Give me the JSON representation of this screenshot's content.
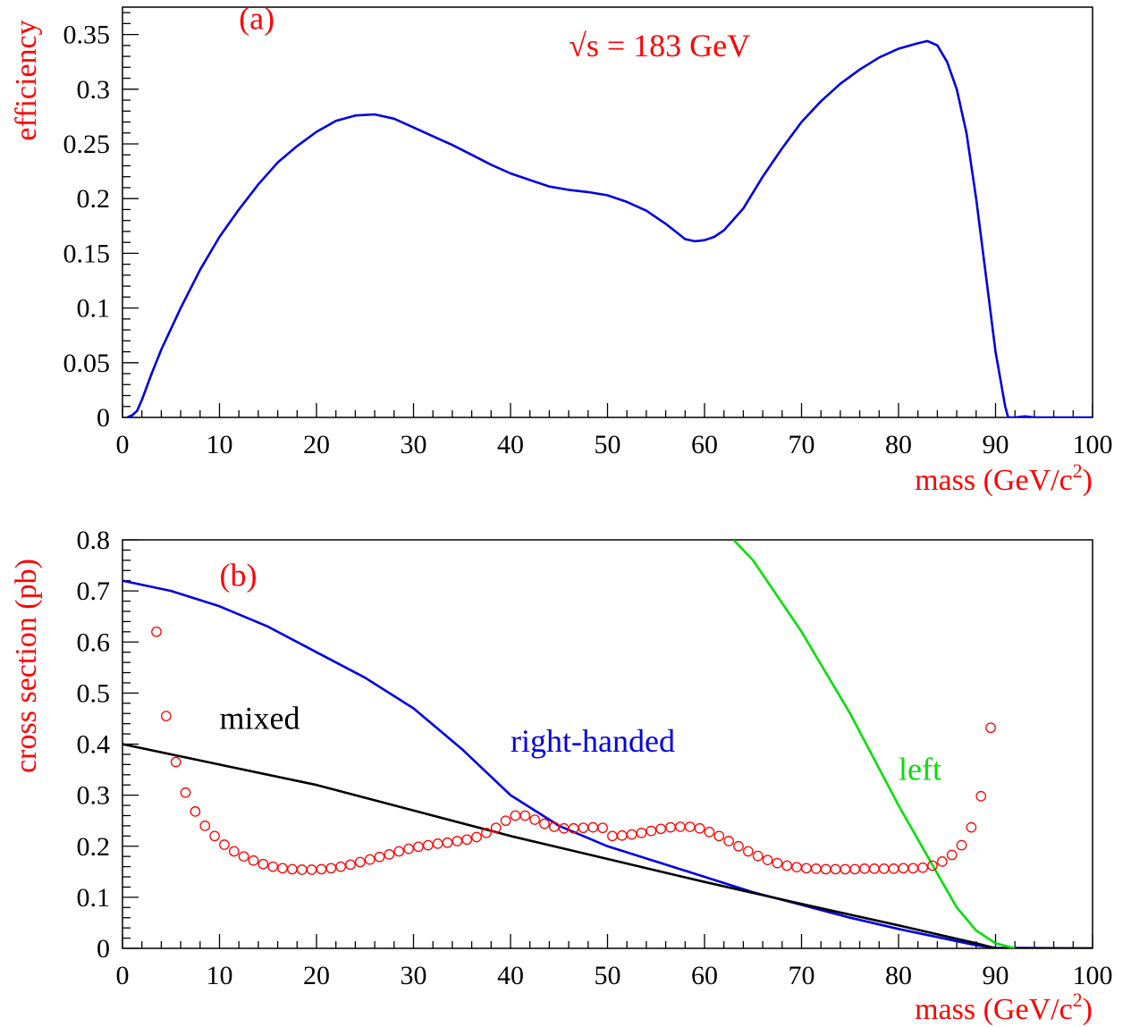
{
  "colors": {
    "red": "#ff0000",
    "blue": "#0000e0",
    "green": "#00e000",
    "black": "#000000"
  },
  "chart_data": [
    {
      "panel": "a",
      "type": "line",
      "xlabel_main": "mass (GeV/c",
      "xlabel_sup": "2",
      "xlabel_close": ")",
      "ylabel": "efficiency",
      "xlim": [
        0,
        100
      ],
      "ylim": [
        0,
        0.375
      ],
      "xticks": [
        "0",
        "10",
        "20",
        "30",
        "40",
        "50",
        "60",
        "70",
        "80",
        "90",
        "100"
      ],
      "yticks": [
        "0",
        "0.05",
        "0.1",
        "0.15",
        "0.2",
        "0.25",
        "0.3",
        "0.35"
      ],
      "grid": false,
      "annotations": [
        {
          "text": "(a)",
          "x": 12,
          "y": 0.355,
          "color": "red"
        },
        {
          "text": "√s = 183 GeV",
          "x": 46,
          "y": 0.33,
          "color": "red"
        }
      ],
      "series": [
        {
          "color": "blue",
          "x": [
            0.5,
            1,
            1.5,
            2,
            3,
            4,
            6,
            8,
            10,
            12,
            14,
            16,
            18,
            20,
            22,
            24,
            26,
            28,
            30,
            32,
            34,
            36,
            38,
            40,
            42,
            44,
            46,
            48,
            50,
            52,
            54,
            56,
            57,
            58,
            59,
            60,
            61,
            62,
            64,
            66,
            68,
            70,
            72,
            74,
            76,
            78,
            80,
            82,
            83,
            84,
            85,
            86,
            87,
            88,
            89,
            90,
            91,
            91.3,
            92,
            93,
            94,
            100
          ],
          "y": [
            0.0,
            0.002,
            0.006,
            0.016,
            0.04,
            0.062,
            0.1,
            0.135,
            0.165,
            0.19,
            0.213,
            0.233,
            0.248,
            0.261,
            0.271,
            0.276,
            0.277,
            0.273,
            0.265,
            0.257,
            0.249,
            0.24,
            0.231,
            0.223,
            0.217,
            0.211,
            0.208,
            0.206,
            0.203,
            0.197,
            0.189,
            0.177,
            0.17,
            0.163,
            0.161,
            0.162,
            0.165,
            0.171,
            0.191,
            0.22,
            0.246,
            0.27,
            0.289,
            0.305,
            0.318,
            0.329,
            0.337,
            0.342,
            0.344,
            0.34,
            0.325,
            0.3,
            0.26,
            0.2,
            0.13,
            0.06,
            0.01,
            0.0,
            0.0,
            0.001,
            0.0,
            0.0
          ]
        }
      ]
    },
    {
      "panel": "b",
      "type": "line",
      "xlabel_main": "mass (GeV/c",
      "xlabel_sup": "2",
      "xlabel_close": ")",
      "ylabel": "cross section (pb)",
      "xlim": [
        0,
        100
      ],
      "ylim": [
        0,
        0.8
      ],
      "xticks": [
        "0",
        "10",
        "20",
        "30",
        "40",
        "50",
        "60",
        "70",
        "80",
        "90",
        "100"
      ],
      "yticks": [
        "0",
        "0.1",
        "0.2",
        "0.3",
        "0.4",
        "0.5",
        "0.6",
        "0.7",
        "0.8"
      ],
      "grid": false,
      "annotations": [
        {
          "text": "(b)",
          "x": 10,
          "y": 0.71,
          "color": "red"
        },
        {
          "text": "mixed",
          "x": 10,
          "y": 0.43,
          "color": "black"
        },
        {
          "text": "right-handed",
          "x": 40,
          "y": 0.385,
          "color": "blue"
        },
        {
          "text": "left",
          "x": 80,
          "y": 0.33,
          "color": "green"
        }
      ],
      "series": [
        {
          "name": "right-handed",
          "color": "blue",
          "x": [
            0,
            5,
            10,
            15,
            20,
            25,
            30,
            35,
            40,
            45,
            50,
            55,
            60,
            65,
            70,
            75,
            80,
            85,
            88,
            90,
            100
          ],
          "y": [
            0.72,
            0.7,
            0.67,
            0.63,
            0.58,
            0.53,
            0.47,
            0.39,
            0.3,
            0.24,
            0.2,
            0.17,
            0.14,
            0.11,
            0.085,
            0.06,
            0.038,
            0.018,
            0.006,
            0.001,
            0.0
          ]
        },
        {
          "name": "mixed",
          "color": "black",
          "x": [
            0,
            10,
            20,
            30,
            40,
            50,
            60,
            70,
            80,
            88,
            90,
            100
          ],
          "y": [
            0.4,
            0.36,
            0.32,
            0.27,
            0.22,
            0.175,
            0.13,
            0.087,
            0.045,
            0.01,
            0.0,
            0.0
          ]
        },
        {
          "name": "left",
          "color": "green",
          "x": [
            63,
            65,
            70,
            75,
            80,
            83,
            86,
            88,
            90,
            92
          ],
          "y": [
            0.8,
            0.76,
            0.62,
            0.46,
            0.28,
            0.18,
            0.08,
            0.035,
            0.01,
            0.0
          ]
        },
        {
          "color": "red",
          "style": "markers",
          "x": [
            3.5,
            4.5,
            5.5,
            6.5,
            7.5,
            8.5,
            9.5,
            10.5,
            11.5,
            12.5,
            13.5,
            14.5,
            15.5,
            16.5,
            17.5,
            18.5,
            19.5,
            20.5,
            21.5,
            22.5,
            23.5,
            24.5,
            25.5,
            26.5,
            27.5,
            28.5,
            29.5,
            30.5,
            31.5,
            32.5,
            33.5,
            34.5,
            35.5,
            36.5,
            37.5,
            38.5,
            39.5,
            40.5,
            41.5,
            42.5,
            43.5,
            44.5,
            45.5,
            46.5,
            47.5,
            48.5,
            49.5,
            50.5,
            51.5,
            52.5,
            53.5,
            54.5,
            55.5,
            56.5,
            57.5,
            58.5,
            59.5,
            60.5,
            61.5,
            62.5,
            63.5,
            64.5,
            65.5,
            66.5,
            67.5,
            68.5,
            69.5,
            70.5,
            71.5,
            72.5,
            73.5,
            74.5,
            75.5,
            76.5,
            77.5,
            78.5,
            79.5,
            80.5,
            81.5,
            82.5,
            83.5,
            84.5,
            85.5,
            86.5,
            87.5,
            88.5,
            89.5
          ],
          "y": [
            0.62,
            0.455,
            0.365,
            0.305,
            0.268,
            0.24,
            0.22,
            0.203,
            0.19,
            0.18,
            0.172,
            0.165,
            0.16,
            0.157,
            0.155,
            0.154,
            0.154,
            0.155,
            0.157,
            0.16,
            0.164,
            0.169,
            0.174,
            0.179,
            0.184,
            0.19,
            0.195,
            0.199,
            0.202,
            0.205,
            0.207,
            0.21,
            0.213,
            0.218,
            0.226,
            0.236,
            0.25,
            0.26,
            0.26,
            0.252,
            0.244,
            0.238,
            0.235,
            0.235,
            0.236,
            0.237,
            0.236,
            0.22,
            0.221,
            0.223,
            0.226,
            0.23,
            0.234,
            0.237,
            0.238,
            0.238,
            0.235,
            0.228,
            0.22,
            0.21,
            0.2,
            0.19,
            0.181,
            0.173,
            0.167,
            0.162,
            0.159,
            0.157,
            0.156,
            0.155,
            0.155,
            0.155,
            0.155,
            0.156,
            0.156,
            0.156,
            0.156,
            0.157,
            0.157,
            0.158,
            0.162,
            0.17,
            0.183,
            0.202,
            0.237,
            0.298,
            0.432
          ]
        }
      ]
    }
  ]
}
